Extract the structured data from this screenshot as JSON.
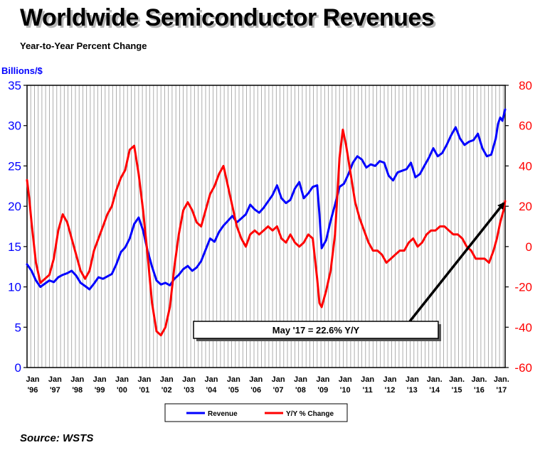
{
  "title": "Worldwide Semiconductor Revenues",
  "subtitle": "Year-to-Year Percent Change",
  "source": "Source: WSTS",
  "chart_data": {
    "type": "line",
    "left_axis": {
      "label": "Billions/$",
      "ylim": [
        0,
        35
      ],
      "ticks": [
        0,
        5,
        10,
        15,
        20,
        25,
        30,
        35
      ],
      "color": "#0000ff"
    },
    "right_axis": {
      "label": "",
      "ylim": [
        -60,
        80
      ],
      "ticks": [
        -60,
        -40,
        -20,
        0,
        20,
        40,
        60,
        80
      ],
      "color": "#ff0000"
    },
    "x_ticks": [
      {
        "top": "Jan",
        "bottom": "'96"
      },
      {
        "top": "Jan",
        "bottom": "'97"
      },
      {
        "top": "Jan",
        "bottom": "'98"
      },
      {
        "top": "Jan",
        "bottom": "'99"
      },
      {
        "top": "Jan",
        "bottom": "'00"
      },
      {
        "top": "Jan",
        "bottom": "'01"
      },
      {
        "top": "Jan",
        "bottom": "'02"
      },
      {
        "top": "Jan",
        "bottom": "'03"
      },
      {
        "top": "Jan",
        "bottom": "'04"
      },
      {
        "top": "Jan",
        "bottom": "'05"
      },
      {
        "top": "Jan",
        "bottom": "'06"
      },
      {
        "top": "Jan",
        "bottom": "'07"
      },
      {
        "top": "Jan",
        "bottom": "'08"
      },
      {
        "top": "Jan",
        "bottom": "'09"
      },
      {
        "top": "Jan",
        "bottom": "'10"
      },
      {
        "top": "Jan",
        "bottom": "'11"
      },
      {
        "top": "Jan",
        "bottom": "'12"
      },
      {
        "top": "Jan",
        "bottom": "'13"
      },
      {
        "top": "Jan.",
        "bottom": "'14"
      },
      {
        "top": "Jan.",
        "bottom": "'15"
      },
      {
        "top": "Jan.",
        "bottom": "'16"
      },
      {
        "top": "Jan.",
        "bottom": "'17"
      }
    ],
    "x_range": [
      1996.0,
      2017.42
    ],
    "grid": {
      "vertical": true,
      "horizontal": false
    },
    "legend_position": "bottom-center",
    "series": [
      {
        "name": "Revenue",
        "axis": "left",
        "color": "#0000ff",
        "points": [
          [
            1996.0,
            12.8
          ],
          [
            1996.2,
            12.0
          ],
          [
            1996.4,
            10.8
          ],
          [
            1996.6,
            10.0
          ],
          [
            1996.8,
            10.4
          ],
          [
            1997.0,
            10.8
          ],
          [
            1997.2,
            10.6
          ],
          [
            1997.4,
            11.2
          ],
          [
            1997.6,
            11.5
          ],
          [
            1997.8,
            11.7
          ],
          [
            1998.0,
            12.0
          ],
          [
            1998.2,
            11.4
          ],
          [
            1998.4,
            10.5
          ],
          [
            1998.6,
            10.1
          ],
          [
            1998.8,
            9.7
          ],
          [
            1999.0,
            10.4
          ],
          [
            1999.2,
            11.2
          ],
          [
            1999.4,
            11.0
          ],
          [
            1999.6,
            11.3
          ],
          [
            1999.8,
            11.6
          ],
          [
            2000.0,
            12.8
          ],
          [
            2000.2,
            14.3
          ],
          [
            2000.4,
            14.9
          ],
          [
            2000.6,
            16.0
          ],
          [
            2000.8,
            17.8
          ],
          [
            2001.0,
            18.6
          ],
          [
            2001.2,
            17.0
          ],
          [
            2001.4,
            14.5
          ],
          [
            2001.6,
            12.5
          ],
          [
            2001.8,
            10.8
          ],
          [
            2002.0,
            10.3
          ],
          [
            2002.2,
            10.5
          ],
          [
            2002.4,
            10.2
          ],
          [
            2002.6,
            11.0
          ],
          [
            2002.8,
            11.5
          ],
          [
            2003.0,
            12.2
          ],
          [
            2003.2,
            12.6
          ],
          [
            2003.4,
            12.0
          ],
          [
            2003.6,
            12.4
          ],
          [
            2003.8,
            13.2
          ],
          [
            2004.0,
            14.6
          ],
          [
            2004.2,
            16.0
          ],
          [
            2004.4,
            15.6
          ],
          [
            2004.6,
            16.8
          ],
          [
            2004.8,
            17.6
          ],
          [
            2005.0,
            18.2
          ],
          [
            2005.2,
            18.8
          ],
          [
            2005.4,
            18.0
          ],
          [
            2005.6,
            18.5
          ],
          [
            2005.8,
            19.0
          ],
          [
            2006.0,
            20.2
          ],
          [
            2006.2,
            19.6
          ],
          [
            2006.4,
            19.2
          ],
          [
            2006.6,
            19.8
          ],
          [
            2006.8,
            20.6
          ],
          [
            2007.0,
            21.4
          ],
          [
            2007.2,
            22.6
          ],
          [
            2007.4,
            21.0
          ],
          [
            2007.6,
            20.4
          ],
          [
            2007.8,
            20.8
          ],
          [
            2008.0,
            22.2
          ],
          [
            2008.2,
            23.0
          ],
          [
            2008.4,
            21.0
          ],
          [
            2008.6,
            21.6
          ],
          [
            2008.8,
            22.4
          ],
          [
            2009.0,
            22.6
          ],
          [
            2009.1,
            19.0
          ],
          [
            2009.2,
            14.8
          ],
          [
            2009.4,
            15.8
          ],
          [
            2009.6,
            18.2
          ],
          [
            2009.8,
            20.2
          ],
          [
            2010.0,
            22.4
          ],
          [
            2010.2,
            22.8
          ],
          [
            2010.4,
            24.0
          ],
          [
            2010.6,
            25.4
          ],
          [
            2010.8,
            26.2
          ],
          [
            2011.0,
            25.8
          ],
          [
            2011.2,
            24.8
          ],
          [
            2011.4,
            25.2
          ],
          [
            2011.6,
            25.0
          ],
          [
            2011.8,
            25.6
          ],
          [
            2012.0,
            25.4
          ],
          [
            2012.2,
            23.8
          ],
          [
            2012.4,
            23.2
          ],
          [
            2012.6,
            24.2
          ],
          [
            2012.8,
            24.4
          ],
          [
            2013.0,
            24.6
          ],
          [
            2013.2,
            25.4
          ],
          [
            2013.4,
            23.6
          ],
          [
            2013.6,
            24.0
          ],
          [
            2013.8,
            25.0
          ],
          [
            2014.0,
            26.0
          ],
          [
            2014.2,
            27.2
          ],
          [
            2014.4,
            26.2
          ],
          [
            2014.6,
            26.6
          ],
          [
            2014.8,
            27.6
          ],
          [
            2015.0,
            28.8
          ],
          [
            2015.2,
            29.8
          ],
          [
            2015.4,
            28.4
          ],
          [
            2015.6,
            27.6
          ],
          [
            2015.8,
            28.0
          ],
          [
            2016.0,
            28.2
          ],
          [
            2016.2,
            29.0
          ],
          [
            2016.4,
            27.2
          ],
          [
            2016.6,
            26.2
          ],
          [
            2016.8,
            26.4
          ],
          [
            2017.0,
            28.4
          ],
          [
            2017.1,
            30.2
          ],
          [
            2017.2,
            31.0
          ],
          [
            2017.3,
            30.6
          ],
          [
            2017.42,
            32.0
          ]
        ]
      },
      {
        "name": "Y/Y % Change",
        "axis": "right",
        "color": "#ff0000",
        "points": [
          [
            1996.0,
            33
          ],
          [
            1996.1,
            24
          ],
          [
            1996.2,
            12
          ],
          [
            1996.4,
            -8
          ],
          [
            1996.6,
            -18
          ],
          [
            1996.8,
            -16
          ],
          [
            1997.0,
            -14
          ],
          [
            1997.2,
            -6
          ],
          [
            1997.4,
            8
          ],
          [
            1997.6,
            16
          ],
          [
            1997.8,
            12
          ],
          [
            1998.0,
            4
          ],
          [
            1998.2,
            -4
          ],
          [
            1998.4,
            -12
          ],
          [
            1998.6,
            -16
          ],
          [
            1998.8,
            -12
          ],
          [
            1999.0,
            -2
          ],
          [
            1999.2,
            4
          ],
          [
            1999.4,
            10
          ],
          [
            1999.6,
            16
          ],
          [
            1999.8,
            20
          ],
          [
            2000.0,
            28
          ],
          [
            2000.2,
            34
          ],
          [
            2000.4,
            38
          ],
          [
            2000.6,
            48
          ],
          [
            2000.8,
            50
          ],
          [
            2001.0,
            36
          ],
          [
            2001.2,
            18
          ],
          [
            2001.4,
            -4
          ],
          [
            2001.6,
            -28
          ],
          [
            2001.8,
            -42
          ],
          [
            2002.0,
            -44
          ],
          [
            2002.2,
            -40
          ],
          [
            2002.4,
            -30
          ],
          [
            2002.6,
            -10
          ],
          [
            2002.8,
            6
          ],
          [
            2003.0,
            18
          ],
          [
            2003.2,
            22
          ],
          [
            2003.4,
            18
          ],
          [
            2003.6,
            12
          ],
          [
            2003.8,
            10
          ],
          [
            2004.0,
            18
          ],
          [
            2004.2,
            26
          ],
          [
            2004.4,
            30
          ],
          [
            2004.6,
            36
          ],
          [
            2004.8,
            40
          ],
          [
            2005.0,
            30
          ],
          [
            2005.2,
            20
          ],
          [
            2005.4,
            10
          ],
          [
            2005.6,
            4
          ],
          [
            2005.8,
            0
          ],
          [
            2006.0,
            6
          ],
          [
            2006.2,
            8
          ],
          [
            2006.4,
            6
          ],
          [
            2006.6,
            8
          ],
          [
            2006.8,
            10
          ],
          [
            2007.0,
            8
          ],
          [
            2007.2,
            10
          ],
          [
            2007.4,
            4
          ],
          [
            2007.6,
            2
          ],
          [
            2007.8,
            6
          ],
          [
            2008.0,
            2
          ],
          [
            2008.2,
            0
          ],
          [
            2008.4,
            2
          ],
          [
            2008.6,
            6
          ],
          [
            2008.8,
            4
          ],
          [
            2009.0,
            -16
          ],
          [
            2009.1,
            -28
          ],
          [
            2009.2,
            -30
          ],
          [
            2009.4,
            -22
          ],
          [
            2009.6,
            -12
          ],
          [
            2009.8,
            6
          ],
          [
            2010.0,
            44
          ],
          [
            2010.15,
            58
          ],
          [
            2010.3,
            50
          ],
          [
            2010.5,
            36
          ],
          [
            2010.7,
            22
          ],
          [
            2010.9,
            14
          ],
          [
            2011.1,
            8
          ],
          [
            2011.3,
            2
          ],
          [
            2011.5,
            -2
          ],
          [
            2011.7,
            -2
          ],
          [
            2011.9,
            -4
          ],
          [
            2012.1,
            -8
          ],
          [
            2012.3,
            -6
          ],
          [
            2012.5,
            -4
          ],
          [
            2012.7,
            -2
          ],
          [
            2012.9,
            -2
          ],
          [
            2013.1,
            2
          ],
          [
            2013.3,
            4
          ],
          [
            2013.5,
            0
          ],
          [
            2013.7,
            2
          ],
          [
            2013.9,
            6
          ],
          [
            2014.1,
            8
          ],
          [
            2014.3,
            8
          ],
          [
            2014.5,
            10
          ],
          [
            2014.7,
            10
          ],
          [
            2014.9,
            8
          ],
          [
            2015.1,
            6
          ],
          [
            2015.3,
            6
          ],
          [
            2015.5,
            4
          ],
          [
            2015.7,
            0
          ],
          [
            2015.9,
            -2
          ],
          [
            2016.1,
            -6
          ],
          [
            2016.3,
            -6
          ],
          [
            2016.5,
            -6
          ],
          [
            2016.7,
            -8
          ],
          [
            2016.9,
            -2
          ],
          [
            2017.05,
            4
          ],
          [
            2017.2,
            12
          ],
          [
            2017.35,
            18
          ],
          [
            2017.42,
            22.6
          ]
        ]
      }
    ],
    "annotation": {
      "text": "May '17 = 22.6% Y/Y"
    }
  }
}
